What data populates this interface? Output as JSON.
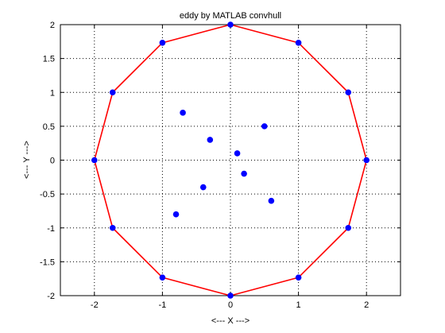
{
  "chart_data": {
    "type": "scatter",
    "title": "eddy by MATLAB convhull",
    "xlabel": "<---  X  --->",
    "ylabel": "<---  Y  --->",
    "xlim": [
      -2.5,
      2.5
    ],
    "ylim": [
      -2,
      2
    ],
    "xticks": [
      -2,
      -1,
      0,
      1,
      2
    ],
    "yticks": [
      -2,
      -1.5,
      -1,
      -0.5,
      0,
      0.5,
      1,
      1.5,
      2
    ],
    "xtick_labels": [
      "-2",
      "-1",
      "0",
      "1",
      "2"
    ],
    "ytick_labels": [
      "-2",
      "-1.5",
      "-1",
      "-0.5",
      "0",
      "0.5",
      "1",
      "1.5",
      "2"
    ],
    "grid": true,
    "grid_style": "dotted",
    "series": [
      {
        "kind": "points",
        "color": "#0000ff",
        "points": [
          [
            2,
            0
          ],
          [
            1.732,
            1
          ],
          [
            1,
            1.732
          ],
          [
            0,
            2
          ],
          [
            -1,
            1.732
          ],
          [
            -1.732,
            1
          ],
          [
            -2,
            0
          ],
          [
            -1.732,
            -1
          ],
          [
            -1,
            -1.732
          ],
          [
            0,
            -2
          ],
          [
            1,
            -1.732
          ],
          [
            1.732,
            -1
          ],
          [
            -0.7,
            0.7
          ],
          [
            -0.3,
            0.3
          ],
          [
            0.5,
            0.5
          ],
          [
            0.1,
            0.1
          ],
          [
            0.2,
            -0.2
          ],
          [
            -0.4,
            -0.4
          ],
          [
            -0.8,
            -0.8
          ],
          [
            0.6,
            -0.6
          ]
        ]
      },
      {
        "kind": "hull",
        "color": "#ff0000",
        "points": [
          [
            2,
            0
          ],
          [
            1.732,
            1
          ],
          [
            1,
            1.732
          ],
          [
            0,
            2
          ],
          [
            -1,
            1.732
          ],
          [
            -1.732,
            1
          ],
          [
            -2,
            0
          ],
          [
            -1.732,
            -1
          ],
          [
            -1,
            -1.732
          ],
          [
            0,
            -2
          ],
          [
            1,
            -1.732
          ],
          [
            1.732,
            -1
          ],
          [
            2,
            0
          ]
        ]
      }
    ]
  }
}
